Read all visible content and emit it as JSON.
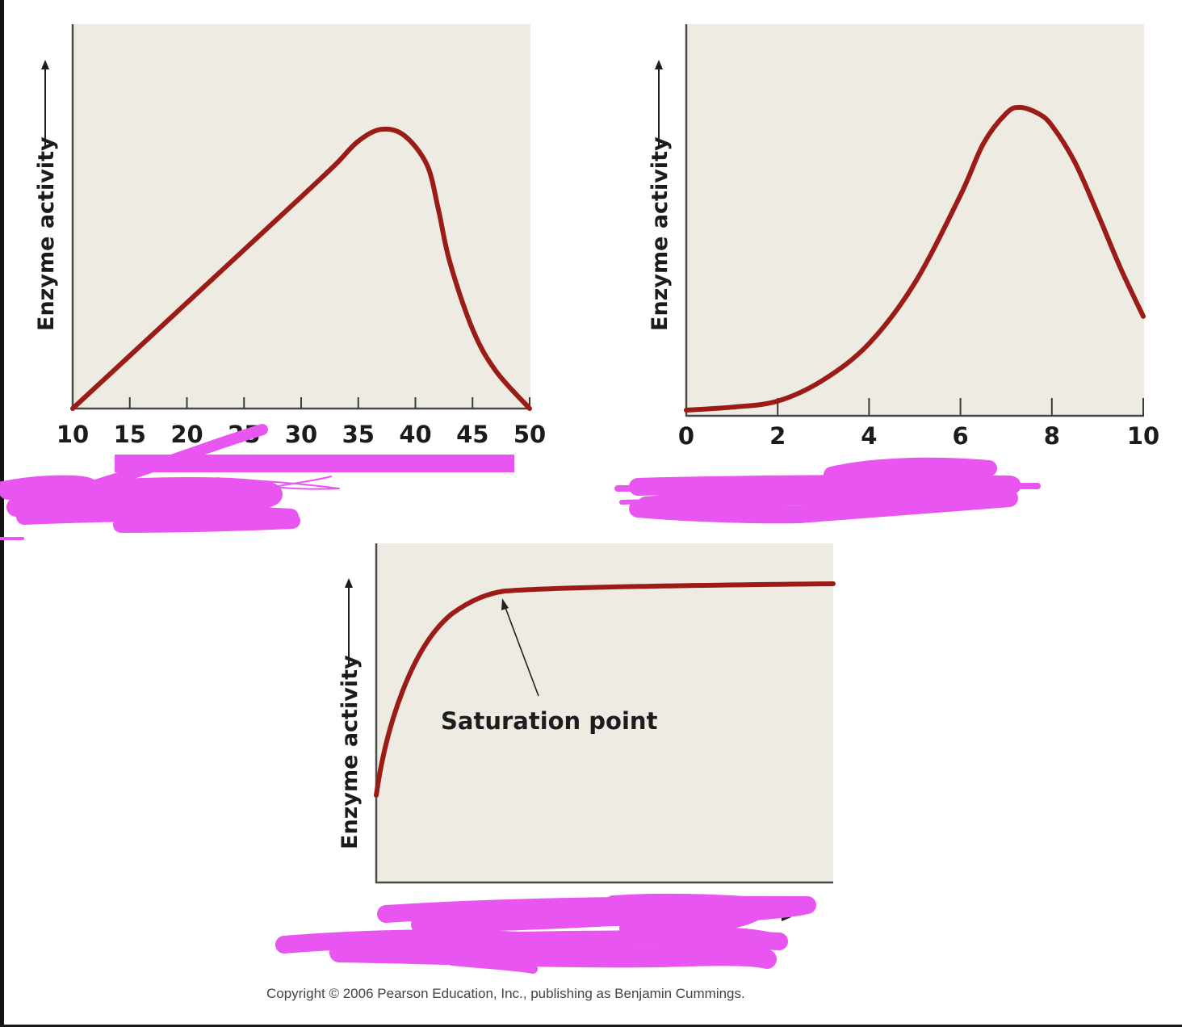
{
  "figure": {
    "copyright": "Copyright © 2006 Pearson Education, Inc., publishing as Benjamin Cummings.",
    "colors": {
      "panel_background": "#eeebe3",
      "curve": "#9b1b16",
      "axis": "#4a4a48",
      "redaction_marker": "#e855f0"
    }
  },
  "chart_data": [
    {
      "id": "temperature",
      "type": "line",
      "title": "",
      "xlabel": "(obscured)",
      "ylabel": "Enzyme activity",
      "xlim": [
        10,
        50
      ],
      "xticks": [
        "10",
        "15",
        "20",
        "25",
        "30",
        "35",
        "40",
        "45",
        "50"
      ],
      "grid": false,
      "legend": null,
      "x": [
        10,
        15,
        20,
        25,
        30,
        33,
        35,
        37,
        39,
        41,
        42,
        43,
        45,
        47,
        50
      ],
      "y": [
        0.0,
        0.18,
        0.36,
        0.54,
        0.72,
        0.83,
        0.91,
        0.95,
        0.93,
        0.83,
        0.68,
        0.5,
        0.27,
        0.13,
        0.0
      ]
    },
    {
      "id": "ph",
      "type": "line",
      "title": "",
      "xlabel": "(obscured)",
      "ylabel": "Enzyme activity",
      "xlim": [
        0,
        10
      ],
      "xticks": [
        "0",
        "2",
        "4",
        "6",
        "8",
        "10"
      ],
      "grid": false,
      "legend": null,
      "x": [
        0,
        1,
        2,
        3,
        4,
        5,
        6,
        6.5,
        7,
        7.3,
        7.7,
        8,
        8.5,
        9,
        9.5,
        10
      ],
      "y": [
        0.0,
        0.01,
        0.03,
        0.1,
        0.22,
        0.42,
        0.71,
        0.88,
        0.98,
        1.0,
        0.98,
        0.94,
        0.82,
        0.65,
        0.47,
        0.31
      ]
    },
    {
      "id": "substrate",
      "type": "line",
      "title": "",
      "xlabel": "(obscured)",
      "ylabel": "Enzyme activity",
      "xlim": [
        0,
        1
      ],
      "xticks": [],
      "grid": false,
      "legend": null,
      "x": [
        0,
        0.05,
        0.1,
        0.15,
        0.2,
        0.27,
        0.4,
        0.6,
        0.8,
        1.0
      ],
      "y": [
        0.28,
        0.55,
        0.72,
        0.82,
        0.87,
        0.9,
        0.905,
        0.91,
        0.915,
        0.92
      ],
      "annotations": [
        {
          "text": "Saturation point",
          "target_x": 0.27,
          "target_y": 0.9
        }
      ]
    }
  ],
  "labels": {
    "ylabel": "Enzyme activity",
    "saturation": "Saturation point",
    "chart1_ticks": [
      "10",
      "15",
      "20",
      "25",
      "30",
      "35",
      "40",
      "45",
      "50"
    ],
    "chart2_ticks": [
      "0",
      "2",
      "4",
      "6",
      "8",
      "10"
    ]
  }
}
